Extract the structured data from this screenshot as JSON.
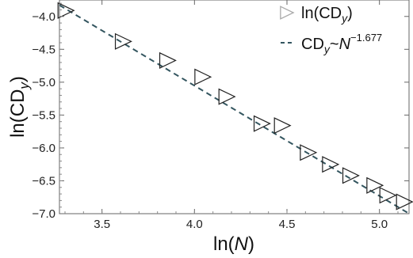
{
  "chart_data": {
    "type": "scatter",
    "xlabel": {
      "base": "ln(",
      "var": "N",
      "close": ")"
    },
    "ylabel": {
      "base": "ln(CD",
      "sub": "y",
      "close": ")"
    },
    "xlim": [
      3.27,
      5.16
    ],
    "ylim": [
      -7.0,
      -3.75
    ],
    "x_ticks": [
      3.5,
      4.0,
      4.5,
      5.0
    ],
    "x_tick_labels": [
      "3.5",
      "4.0",
      "4.5",
      "5.0"
    ],
    "y_ticks": [
      -4.0,
      -4.5,
      -5.0,
      -5.5,
      -6.0,
      -6.5,
      -7.0
    ],
    "y_tick_labels": [
      "−4.0",
      "−4.5",
      "−5.0",
      "−5.5",
      "−6.0",
      "−6.5",
      "−7.0"
    ],
    "series": [
      {
        "kind": "points",
        "marker": "triangle-right",
        "color": "#222222",
        "legend_color": "#aaaaaa",
        "legend": {
          "base": "ln(CD",
          "sub": "y",
          "close": ")"
        },
        "x": [
          3.3,
          3.61,
          3.85,
          4.04,
          4.17,
          4.36,
          4.47,
          4.61,
          4.73,
          4.84,
          4.97,
          5.04,
          5.13
        ],
        "y": [
          -3.91,
          -4.38,
          -4.67,
          -4.92,
          -5.22,
          -5.63,
          -5.66,
          -6.07,
          -6.25,
          -6.42,
          -6.57,
          -6.72,
          -6.82
        ]
      },
      {
        "kind": "fit-line",
        "color": "#33555f",
        "dash": "7,5",
        "legend": {
          "base": "CD",
          "sub": "y",
          "mid": "~",
          "var": "N",
          "sup": "−1.677"
        },
        "slope": -1.677,
        "intercept": 1.655
      }
    ]
  }
}
